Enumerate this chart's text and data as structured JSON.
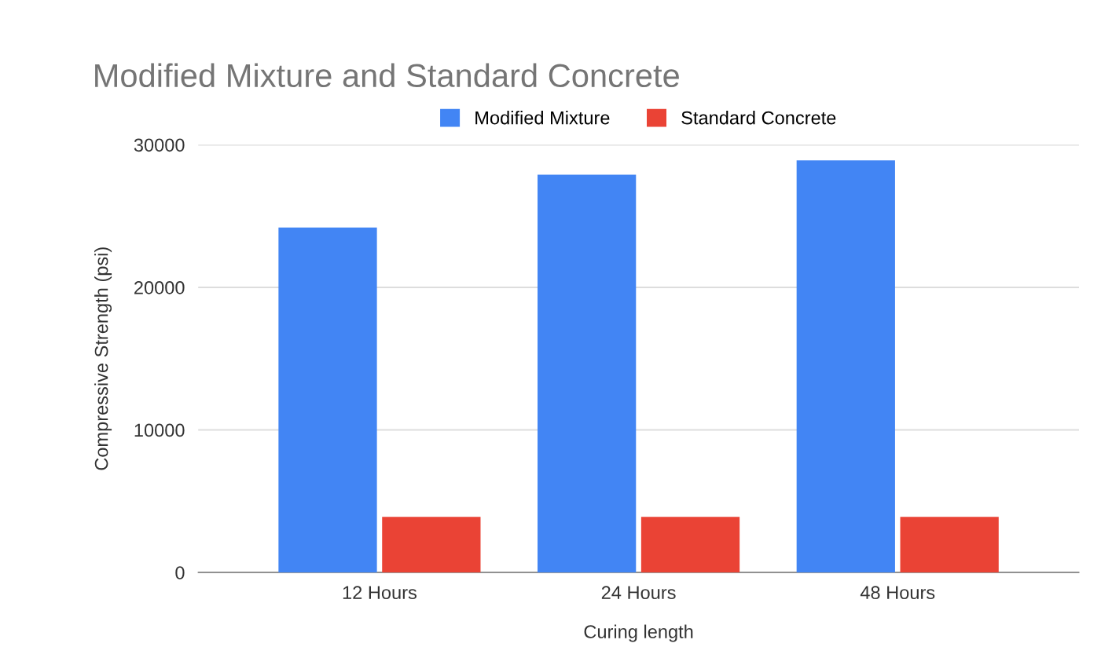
{
  "chart_data": {
    "type": "bar",
    "title": "Modified Mixture and Standard Concrete",
    "xlabel": "Curing length",
    "ylabel": "Compressive Strength (psi)",
    "categories": [
      "12 Hours",
      "24 Hours",
      "48 Hours"
    ],
    "series": [
      {
        "name": "Modified Mixture",
        "color": "#4285f4",
        "values": [
          24200,
          27900,
          28900
        ]
      },
      {
        "name": "Standard Concrete",
        "color": "#ea4335",
        "values": [
          3900,
          3900,
          3900
        ]
      }
    ],
    "ylim": [
      0,
      30000
    ],
    "yticks": [
      0,
      10000,
      20000,
      30000
    ],
    "grid": "y",
    "legend": "top"
  }
}
